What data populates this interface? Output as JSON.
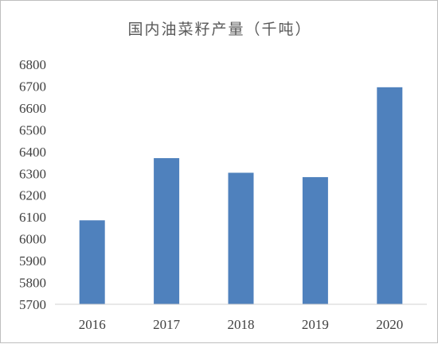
{
  "chart_data": {
    "type": "bar",
    "title": "国内油菜籽产量（千吨）",
    "xlabel": "",
    "ylabel": "",
    "categories": [
      "2016",
      "2017",
      "2018",
      "2019",
      "2020"
    ],
    "values": [
      6085,
      6370,
      6303,
      6283,
      6695
    ],
    "ylim": [
      5700,
      6800
    ],
    "yticks": [
      5700,
      5800,
      5900,
      6000,
      6100,
      6200,
      6300,
      6400,
      6500,
      6600,
      6700,
      6800
    ],
    "bar_color": "#4f81bd",
    "grid": false,
    "legend": "none"
  }
}
